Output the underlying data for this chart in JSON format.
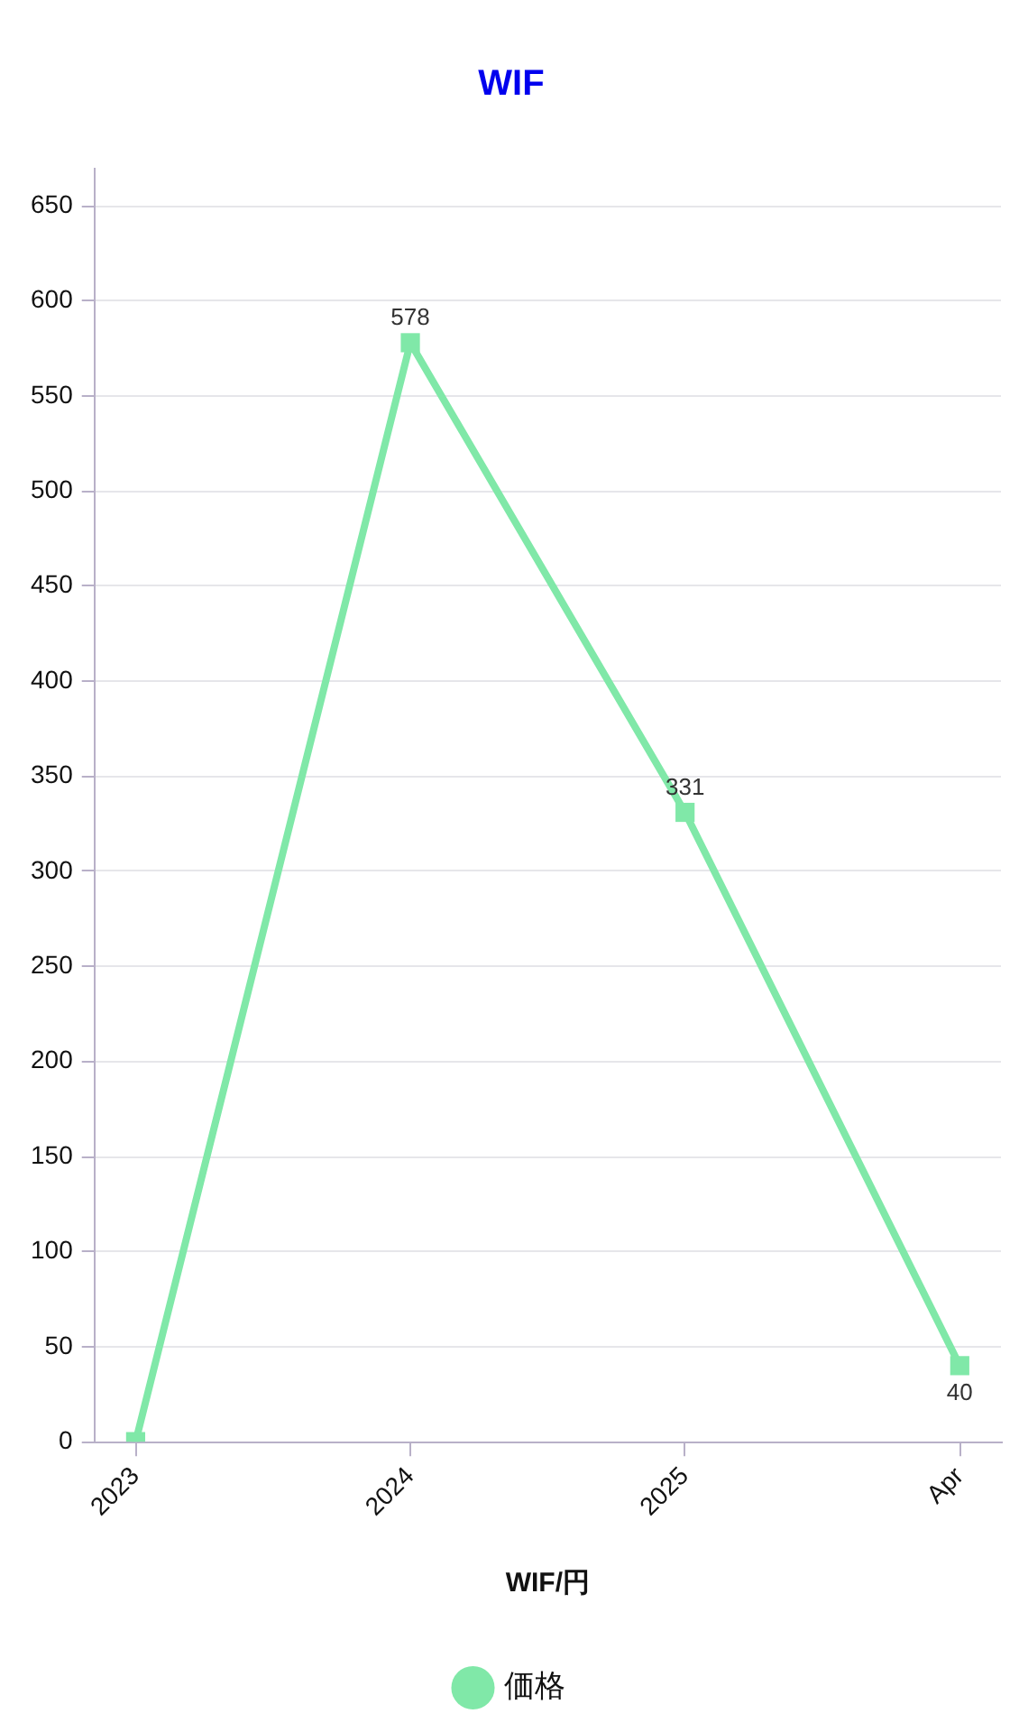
{
  "chart_data": {
    "type": "line",
    "title": "WIF",
    "xlabel": "WIF/円",
    "categories": [
      "2023",
      "2024",
      "2025",
      "Apr"
    ],
    "series": [
      {
        "name": "価格",
        "color": "#80e8a8",
        "values": [
          0,
          578,
          331,
          40
        ],
        "value_labels": [
          null,
          "578",
          "331",
          "40"
        ]
      }
    ],
    "ylim": [
      0,
      670
    ],
    "yticks": [
      0,
      50,
      100,
      150,
      200,
      250,
      300,
      350,
      400,
      450,
      500,
      550,
      600,
      650
    ],
    "grid": "y",
    "legend": "bottom",
    "marker": "square",
    "line_style": "solid"
  }
}
